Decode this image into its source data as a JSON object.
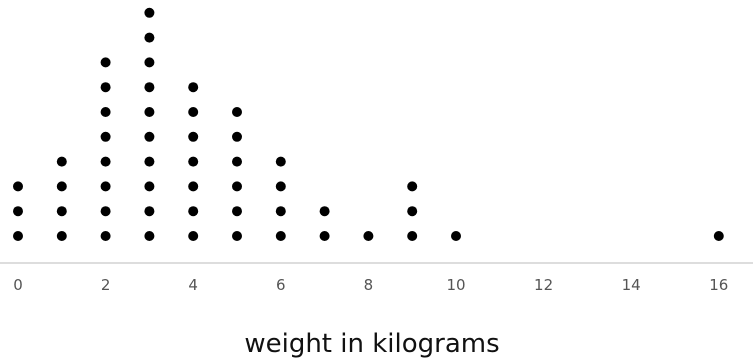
{
  "chart_data": {
    "type": "dot plot",
    "xlabel": "weight in kilograms",
    "ticks": [
      "0",
      "2",
      "4",
      "6",
      "8",
      "10",
      "12",
      "14",
      "16"
    ],
    "xlim": [
      0,
      16
    ],
    "grid": false,
    "values": [
      0,
      0,
      0,
      1,
      1,
      1,
      1,
      2,
      2,
      2,
      2,
      2,
      2,
      2,
      2,
      3,
      3,
      3,
      3,
      3,
      3,
      3,
      3,
      3,
      3,
      4,
      4,
      4,
      4,
      4,
      4,
      4,
      5,
      5,
      5,
      5,
      5,
      5,
      6,
      6,
      6,
      6,
      7,
      7,
      8,
      9,
      9,
      9,
      10,
      16
    ],
    "counts": [
      {
        "x": 0,
        "count": 3
      },
      {
        "x": 1,
        "count": 4
      },
      {
        "x": 2,
        "count": 8
      },
      {
        "x": 3,
        "count": 10
      },
      {
        "x": 4,
        "count": 7
      },
      {
        "x": 5,
        "count": 6
      },
      {
        "x": 6,
        "count": 4
      },
      {
        "x": 7,
        "count": 2
      },
      {
        "x": 8,
        "count": 1
      },
      {
        "x": 9,
        "count": 3
      },
      {
        "x": 10,
        "count": 1
      },
      {
        "x": 16,
        "count": 1
      }
    ],
    "colors": {
      "dot": "#000000",
      "axis": "#d2d2d2",
      "tick_text": "#555555",
      "title_text": "#111111"
    }
  }
}
